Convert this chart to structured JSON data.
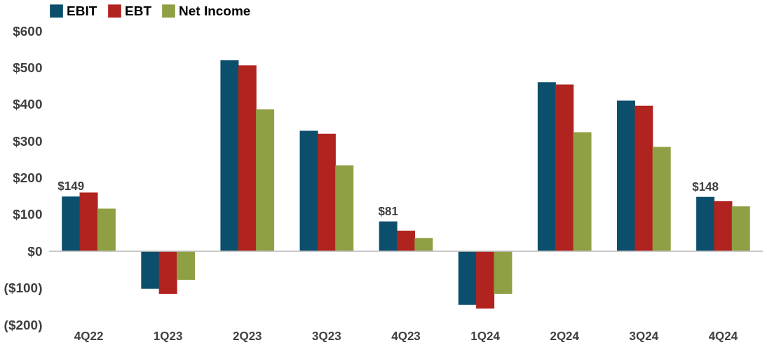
{
  "chart_data": {
    "type": "bar",
    "categories": [
      "4Q22",
      "1Q23",
      "2Q23",
      "3Q23",
      "4Q23",
      "1Q24",
      "2Q24",
      "3Q24",
      "4Q24"
    ],
    "series": [
      {
        "name": "EBIT",
        "color": "#0b4f6c",
        "values": [
          149,
          -102,
          520,
          328,
          81,
          -146,
          460,
          410,
          148
        ],
        "value_labels": [
          "$149",
          null,
          null,
          null,
          "$81",
          null,
          null,
          null,
          "$148"
        ]
      },
      {
        "name": "EBT",
        "color": "#b0231f",
        "values": [
          160,
          -116,
          506,
          320,
          56,
          -156,
          454,
          396,
          136
        ]
      },
      {
        "name": "Net Income",
        "color": "#8fa044",
        "values": [
          116,
          -78,
          386,
          234,
          36,
          -116,
          324,
          284,
          122
        ]
      }
    ],
    "ylim": [
      -200,
      600
    ],
    "yticks": [
      {
        "value": -200,
        "label": "($200)"
      },
      {
        "value": -100,
        "label": "($100)"
      },
      {
        "value": 0,
        "label": "$0"
      },
      {
        "value": 100,
        "label": "$100"
      },
      {
        "value": 200,
        "label": "$200"
      },
      {
        "value": 300,
        "label": "$300"
      },
      {
        "value": 400,
        "label": "$400"
      },
      {
        "value": 500,
        "label": "$500"
      },
      {
        "value": 600,
        "label": "$600"
      }
    ],
    "ref_lines": [
      {
        "axis": "y",
        "value": 0,
        "color": "#bfbfbf"
      }
    ],
    "legend": "top",
    "grid": false
  }
}
